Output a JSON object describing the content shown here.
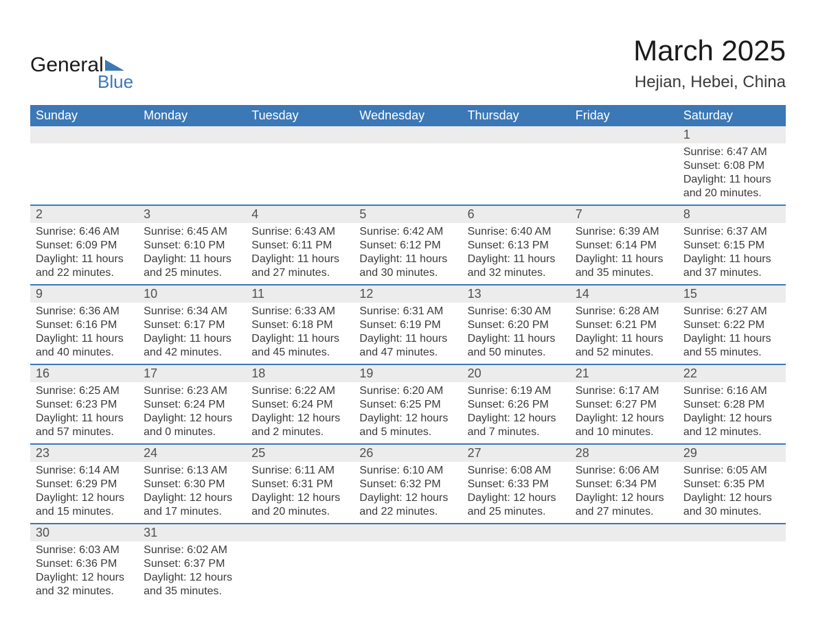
{
  "brand": {
    "text1": "General",
    "text2": "Blue",
    "triangle_color": "#3b78b5"
  },
  "title": {
    "month": "March 2025",
    "location": "Hejian, Hebei, China"
  },
  "colors": {
    "header_bg": "#3b78b5",
    "band_bg": "#ececec",
    "text": "#3a3a3a"
  },
  "weekdays": [
    "Sunday",
    "Monday",
    "Tuesday",
    "Wednesday",
    "Thursday",
    "Friday",
    "Saturday"
  ],
  "weeks": [
    {
      "days": [
        {
          "n": "",
          "sunrise": "",
          "sunset": "",
          "daylight1": "",
          "daylight2": ""
        },
        {
          "n": "",
          "sunrise": "",
          "sunset": "",
          "daylight1": "",
          "daylight2": ""
        },
        {
          "n": "",
          "sunrise": "",
          "sunset": "",
          "daylight1": "",
          "daylight2": ""
        },
        {
          "n": "",
          "sunrise": "",
          "sunset": "",
          "daylight1": "",
          "daylight2": ""
        },
        {
          "n": "",
          "sunrise": "",
          "sunset": "",
          "daylight1": "",
          "daylight2": ""
        },
        {
          "n": "",
          "sunrise": "",
          "sunset": "",
          "daylight1": "",
          "daylight2": ""
        },
        {
          "n": "1",
          "sunrise": "Sunrise: 6:47 AM",
          "sunset": "Sunset: 6:08 PM",
          "daylight1": "Daylight: 11 hours",
          "daylight2": "and 20 minutes."
        }
      ]
    },
    {
      "days": [
        {
          "n": "2",
          "sunrise": "Sunrise: 6:46 AM",
          "sunset": "Sunset: 6:09 PM",
          "daylight1": "Daylight: 11 hours",
          "daylight2": "and 22 minutes."
        },
        {
          "n": "3",
          "sunrise": "Sunrise: 6:45 AM",
          "sunset": "Sunset: 6:10 PM",
          "daylight1": "Daylight: 11 hours",
          "daylight2": "and 25 minutes."
        },
        {
          "n": "4",
          "sunrise": "Sunrise: 6:43 AM",
          "sunset": "Sunset: 6:11 PM",
          "daylight1": "Daylight: 11 hours",
          "daylight2": "and 27 minutes."
        },
        {
          "n": "5",
          "sunrise": "Sunrise: 6:42 AM",
          "sunset": "Sunset: 6:12 PM",
          "daylight1": "Daylight: 11 hours",
          "daylight2": "and 30 minutes."
        },
        {
          "n": "6",
          "sunrise": "Sunrise: 6:40 AM",
          "sunset": "Sunset: 6:13 PM",
          "daylight1": "Daylight: 11 hours",
          "daylight2": "and 32 minutes."
        },
        {
          "n": "7",
          "sunrise": "Sunrise: 6:39 AM",
          "sunset": "Sunset: 6:14 PM",
          "daylight1": "Daylight: 11 hours",
          "daylight2": "and 35 minutes."
        },
        {
          "n": "8",
          "sunrise": "Sunrise: 6:37 AM",
          "sunset": "Sunset: 6:15 PM",
          "daylight1": "Daylight: 11 hours",
          "daylight2": "and 37 minutes."
        }
      ]
    },
    {
      "days": [
        {
          "n": "9",
          "sunrise": "Sunrise: 6:36 AM",
          "sunset": "Sunset: 6:16 PM",
          "daylight1": "Daylight: 11 hours",
          "daylight2": "and 40 minutes."
        },
        {
          "n": "10",
          "sunrise": "Sunrise: 6:34 AM",
          "sunset": "Sunset: 6:17 PM",
          "daylight1": "Daylight: 11 hours",
          "daylight2": "and 42 minutes."
        },
        {
          "n": "11",
          "sunrise": "Sunrise: 6:33 AM",
          "sunset": "Sunset: 6:18 PM",
          "daylight1": "Daylight: 11 hours",
          "daylight2": "and 45 minutes."
        },
        {
          "n": "12",
          "sunrise": "Sunrise: 6:31 AM",
          "sunset": "Sunset: 6:19 PM",
          "daylight1": "Daylight: 11 hours",
          "daylight2": "and 47 minutes."
        },
        {
          "n": "13",
          "sunrise": "Sunrise: 6:30 AM",
          "sunset": "Sunset: 6:20 PM",
          "daylight1": "Daylight: 11 hours",
          "daylight2": "and 50 minutes."
        },
        {
          "n": "14",
          "sunrise": "Sunrise: 6:28 AM",
          "sunset": "Sunset: 6:21 PM",
          "daylight1": "Daylight: 11 hours",
          "daylight2": "and 52 minutes."
        },
        {
          "n": "15",
          "sunrise": "Sunrise: 6:27 AM",
          "sunset": "Sunset: 6:22 PM",
          "daylight1": "Daylight: 11 hours",
          "daylight2": "and 55 minutes."
        }
      ]
    },
    {
      "days": [
        {
          "n": "16",
          "sunrise": "Sunrise: 6:25 AM",
          "sunset": "Sunset: 6:23 PM",
          "daylight1": "Daylight: 11 hours",
          "daylight2": "and 57 minutes."
        },
        {
          "n": "17",
          "sunrise": "Sunrise: 6:23 AM",
          "sunset": "Sunset: 6:24 PM",
          "daylight1": "Daylight: 12 hours",
          "daylight2": "and 0 minutes."
        },
        {
          "n": "18",
          "sunrise": "Sunrise: 6:22 AM",
          "sunset": "Sunset: 6:24 PM",
          "daylight1": "Daylight: 12 hours",
          "daylight2": "and 2 minutes."
        },
        {
          "n": "19",
          "sunrise": "Sunrise: 6:20 AM",
          "sunset": "Sunset: 6:25 PM",
          "daylight1": "Daylight: 12 hours",
          "daylight2": "and 5 minutes."
        },
        {
          "n": "20",
          "sunrise": "Sunrise: 6:19 AM",
          "sunset": "Sunset: 6:26 PM",
          "daylight1": "Daylight: 12 hours",
          "daylight2": "and 7 minutes."
        },
        {
          "n": "21",
          "sunrise": "Sunrise: 6:17 AM",
          "sunset": "Sunset: 6:27 PM",
          "daylight1": "Daylight: 12 hours",
          "daylight2": "and 10 minutes."
        },
        {
          "n": "22",
          "sunrise": "Sunrise: 6:16 AM",
          "sunset": "Sunset: 6:28 PM",
          "daylight1": "Daylight: 12 hours",
          "daylight2": "and 12 minutes."
        }
      ]
    },
    {
      "days": [
        {
          "n": "23",
          "sunrise": "Sunrise: 6:14 AM",
          "sunset": "Sunset: 6:29 PM",
          "daylight1": "Daylight: 12 hours",
          "daylight2": "and 15 minutes."
        },
        {
          "n": "24",
          "sunrise": "Sunrise: 6:13 AM",
          "sunset": "Sunset: 6:30 PM",
          "daylight1": "Daylight: 12 hours",
          "daylight2": "and 17 minutes."
        },
        {
          "n": "25",
          "sunrise": "Sunrise: 6:11 AM",
          "sunset": "Sunset: 6:31 PM",
          "daylight1": "Daylight: 12 hours",
          "daylight2": "and 20 minutes."
        },
        {
          "n": "26",
          "sunrise": "Sunrise: 6:10 AM",
          "sunset": "Sunset: 6:32 PM",
          "daylight1": "Daylight: 12 hours",
          "daylight2": "and 22 minutes."
        },
        {
          "n": "27",
          "sunrise": "Sunrise: 6:08 AM",
          "sunset": "Sunset: 6:33 PM",
          "daylight1": "Daylight: 12 hours",
          "daylight2": "and 25 minutes."
        },
        {
          "n": "28",
          "sunrise": "Sunrise: 6:06 AM",
          "sunset": "Sunset: 6:34 PM",
          "daylight1": "Daylight: 12 hours",
          "daylight2": "and 27 minutes."
        },
        {
          "n": "29",
          "sunrise": "Sunrise: 6:05 AM",
          "sunset": "Sunset: 6:35 PM",
          "daylight1": "Daylight: 12 hours",
          "daylight2": "and 30 minutes."
        }
      ]
    },
    {
      "days": [
        {
          "n": "30",
          "sunrise": "Sunrise: 6:03 AM",
          "sunset": "Sunset: 6:36 PM",
          "daylight1": "Daylight: 12 hours",
          "daylight2": "and 32 minutes."
        },
        {
          "n": "31",
          "sunrise": "Sunrise: 6:02 AM",
          "sunset": "Sunset: 6:37 PM",
          "daylight1": "Daylight: 12 hours",
          "daylight2": "and 35 minutes."
        },
        {
          "n": "",
          "sunrise": "",
          "sunset": "",
          "daylight1": "",
          "daylight2": ""
        },
        {
          "n": "",
          "sunrise": "",
          "sunset": "",
          "daylight1": "",
          "daylight2": ""
        },
        {
          "n": "",
          "sunrise": "",
          "sunset": "",
          "daylight1": "",
          "daylight2": ""
        },
        {
          "n": "",
          "sunrise": "",
          "sunset": "",
          "daylight1": "",
          "daylight2": ""
        },
        {
          "n": "",
          "sunrise": "",
          "sunset": "",
          "daylight1": "",
          "daylight2": ""
        }
      ]
    }
  ]
}
